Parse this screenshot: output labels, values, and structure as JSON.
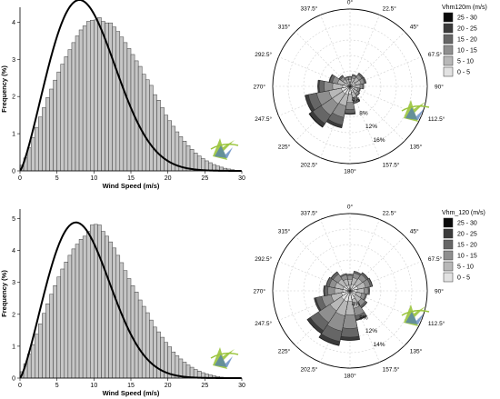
{
  "colors": {
    "background": "#ffffff",
    "bar_fill": "#c6c6c6",
    "bar_stroke": "#3c3c3c",
    "curve": "#000000",
    "grid": "#d0d0d0",
    "legend_fills": [
      "#0a0a0a",
      "#3b3b3b",
      "#666666",
      "#8f8f8f",
      "#b8b8b8",
      "#e2e2e2"
    ],
    "logo_green": "#9ac43c",
    "logo_blue": "#4a78b8"
  },
  "icons": [
    "wind-logo-icon"
  ],
  "chart_data": [
    {
      "type": "bar",
      "panel": "top-histogram",
      "xlabel": "Wind Speed (m/s)",
      "ylabel": "Frequency (%)",
      "xlim": [
        0,
        30
      ],
      "ylim": [
        0,
        4.4
      ],
      "xticks": [
        "0",
        "5",
        "10",
        "15",
        "20",
        "25",
        "30"
      ],
      "yticks": [
        "0",
        "1",
        "2",
        "3",
        "4"
      ],
      "bin_width": 0.5,
      "bin_start": 0,
      "values": [
        0.15,
        0.35,
        0.62,
        0.9,
        1.17,
        1.45,
        1.7,
        1.97,
        2.2,
        2.44,
        2.66,
        2.87,
        3.07,
        3.26,
        3.45,
        3.63,
        3.79,
        3.9,
        4.02,
        4.05,
        4.06,
        4.12,
        4.02,
        3.98,
        3.98,
        3.87,
        3.75,
        3.6,
        3.45,
        3.29,
        3.13,
        2.96,
        2.81,
        2.6,
        2.45,
        2.3,
        2.05,
        1.9,
        1.7,
        1.5,
        1.35,
        1.2,
        1.05,
        0.92,
        0.8,
        0.68,
        0.58,
        0.48,
        0.4,
        0.33,
        0.27,
        0.22,
        0.17,
        0.13,
        0.1,
        0.07,
        0.05,
        0.03
      ],
      "fit_curve": {
        "type": "weibull",
        "k": 2.3,
        "c": 10.3,
        "scale_percent": 50
      }
    },
    {
      "type": "bar",
      "panel": "bottom-histogram",
      "xlabel": "Wind Speed (m/s)",
      "ylabel": "Frequency (%)",
      "xlim": [
        0,
        30
      ],
      "ylim": [
        0,
        5.3
      ],
      "xticks": [
        "0",
        "5",
        "10",
        "15",
        "20",
        "25",
        "30"
      ],
      "yticks": [
        "0",
        "1",
        "2",
        "3",
        "4",
        "5"
      ],
      "bin_width": 0.5,
      "bin_start": 0,
      "values": [
        0.2,
        0.45,
        0.75,
        1.05,
        1.38,
        1.7,
        2.03,
        2.33,
        2.63,
        2.9,
        3.17,
        3.42,
        3.64,
        3.85,
        4.05,
        4.2,
        4.35,
        4.45,
        4.6,
        4.8,
        4.82,
        4.8,
        4.6,
        4.45,
        4.27,
        4.08,
        3.85,
        3.62,
        3.37,
        3.12,
        2.9,
        2.7,
        2.45,
        2.25,
        2.05,
        1.82,
        1.6,
        1.45,
        1.28,
        1.12,
        0.98,
        0.82,
        0.7,
        0.6,
        0.5,
        0.41,
        0.34,
        0.27,
        0.22,
        0.17,
        0.13,
        0.1,
        0.07,
        0.05,
        0.03,
        0.02
      ],
      "fit_curve": {
        "type": "weibull",
        "k": 2.3,
        "c": 9.7,
        "scale_percent": 50
      }
    },
    {
      "type": "wind_rose",
      "panel": "top-rose",
      "legend_title": "Vhm120m (m/s)",
      "legend_classes": [
        "25 - 30",
        "20 - 25",
        "15 - 20",
        "10 - 15",
        "5 - 10",
        "0 - 5"
      ],
      "direction_labels": [
        "0°",
        "22.5°",
        "45°",
        "67.5°",
        "90°",
        "112.5°",
        "135°",
        "157.5°",
        "180°",
        "202.5°",
        "225°",
        "247.5°",
        "270°",
        "292.5°",
        "315°",
        "337.5°"
      ],
      "ring_labels": [
        "4%",
        "8%",
        "12%",
        "16%"
      ],
      "rmax_percent": 20,
      "sectors": [
        [
          1.0,
          0.8,
          0.6,
          0.2,
          0.0,
          0.0
        ],
        [
          1.2,
          1.0,
          0.7,
          0.3,
          0.0,
          0.0
        ],
        [
          1.5,
          1.3,
          0.9,
          0.4,
          0.1,
          0.0
        ],
        [
          1.5,
          1.4,
          0.9,
          0.4,
          0.1,
          0.0
        ],
        [
          1.4,
          1.2,
          0.7,
          0.3,
          0.0,
          0.0
        ],
        [
          1.2,
          0.9,
          0.5,
          0.2,
          0.0,
          0.0
        ],
        [
          1.3,
          1.0,
          0.6,
          0.2,
          0.0,
          0.0
        ],
        [
          1.6,
          1.4,
          1.0,
          0.5,
          0.1,
          0.0
        ],
        [
          2.0,
          2.2,
          1.8,
          1.0,
          0.3,
          0.0
        ],
        [
          2.2,
          3.0,
          3.0,
          2.0,
          0.7,
          0.1
        ],
        [
          2.3,
          3.2,
          3.5,
          2.6,
          1.0,
          0.2
        ],
        [
          2.3,
          3.3,
          3.2,
          2.2,
          0.8,
          0.1
        ],
        [
          1.9,
          2.6,
          2.2,
          1.3,
          0.4,
          0.0
        ],
        [
          1.5,
          1.8,
          1.4,
          0.7,
          0.2,
          0.0
        ],
        [
          1.1,
          1.1,
          0.8,
          0.4,
          0.1,
          0.0
        ],
        [
          1.0,
          0.8,
          0.6,
          0.2,
          0.0,
          0.0
        ]
      ]
    },
    {
      "type": "wind_rose",
      "panel": "bottom-rose",
      "legend_title": "Vhm_120 (m/s)",
      "legend_classes": [
        "25 - 30",
        "20 - 25",
        "15 - 20",
        "10 - 15",
        "5 - 10",
        "0 - 5"
      ],
      "direction_labels": [
        "0°",
        "22.5°",
        "45°",
        "67.5°",
        "90°",
        "112.5°",
        "135°",
        "157.5°",
        "180°",
        "202.5°",
        "225°",
        "247.5°",
        "270°",
        "292.5°",
        "315°",
        "337.5°"
      ],
      "ring_labels": [
        "4%",
        "8%",
        "12%",
        "14%"
      ],
      "rmax_percent": 16,
      "sectors": [
        [
          1.2,
          1.2,
          0.8,
          0.3,
          0.0,
          0.0
        ],
        [
          1.4,
          1.4,
          1.0,
          0.4,
          0.0,
          0.0
        ],
        [
          1.6,
          1.5,
          1.0,
          0.4,
          0.1,
          0.0
        ],
        [
          1.7,
          1.6,
          1.0,
          0.4,
          0.1,
          0.0
        ],
        [
          1.5,
          1.4,
          0.9,
          0.3,
          0.0,
          0.0
        ],
        [
          1.3,
          1.2,
          0.8,
          0.3,
          0.0,
          0.0
        ],
        [
          1.4,
          1.4,
          1.0,
          0.4,
          0.1,
          0.0
        ],
        [
          1.8,
          1.9,
          1.6,
          0.8,
          0.2,
          0.0
        ],
        [
          2.2,
          2.8,
          2.8,
          1.8,
          0.6,
          0.1
        ],
        [
          2.3,
          3.0,
          3.2,
          2.2,
          0.8,
          0.1
        ],
        [
          2.2,
          2.8,
          2.9,
          2.0,
          0.7,
          0.1
        ],
        [
          1.8,
          2.2,
          2.0,
          1.2,
          0.4,
          0.0
        ],
        [
          1.5,
          1.7,
          1.4,
          0.7,
          0.2,
          0.0
        ],
        [
          1.5,
          1.7,
          1.2,
          0.6,
          0.1,
          0.0
        ],
        [
          1.4,
          1.6,
          1.2,
          0.5,
          0.1,
          0.0
        ],
        [
          1.2,
          1.3,
          0.9,
          0.3,
          0.0,
          0.0
        ]
      ]
    }
  ]
}
